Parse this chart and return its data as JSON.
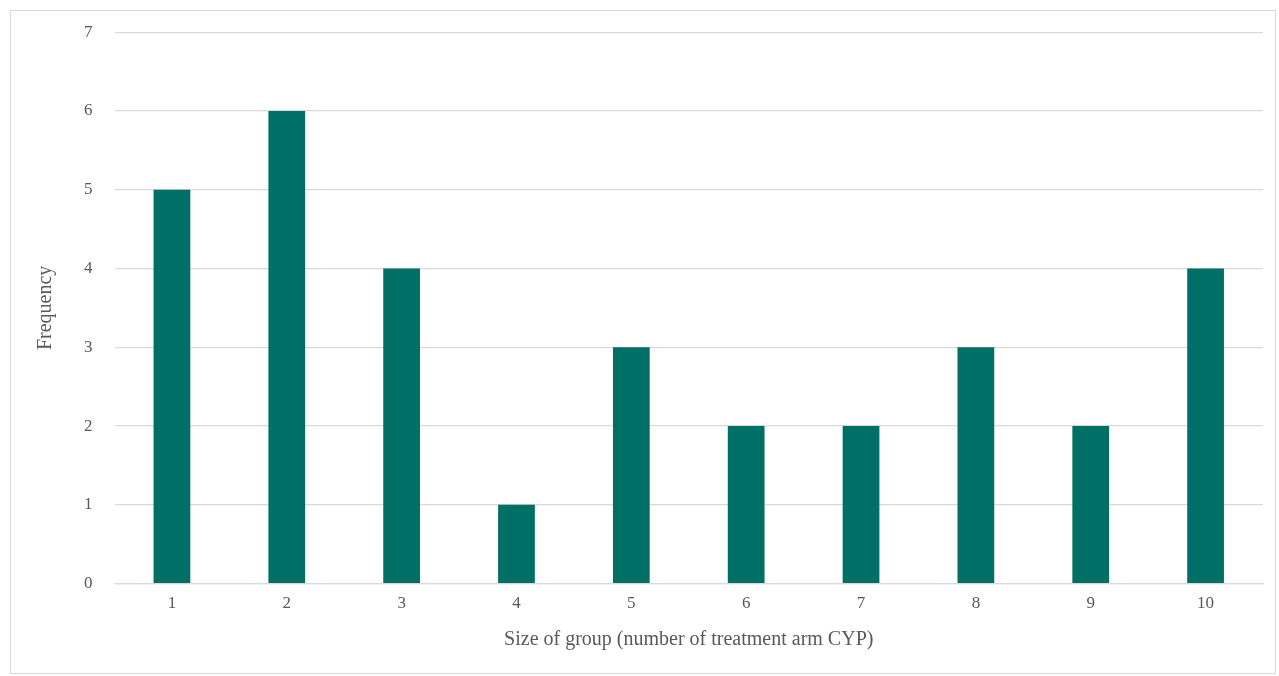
{
  "chart_data": {
    "type": "bar",
    "xlabel": "Size of group (number of treatment arm CYP)",
    "ylabel": "Frequency",
    "categories": [
      "1",
      "2",
      "3",
      "4",
      "5",
      "6",
      "7",
      "8",
      "9",
      "10"
    ],
    "values": [
      5,
      6,
      4,
      1,
      3,
      2,
      2,
      3,
      2,
      4
    ],
    "color": "#006f66",
    "ylim": [
      0,
      7
    ],
    "yticks": [
      0,
      1,
      2,
      3,
      4,
      5,
      6,
      7
    ],
    "grid": "y",
    "legend": false
  }
}
